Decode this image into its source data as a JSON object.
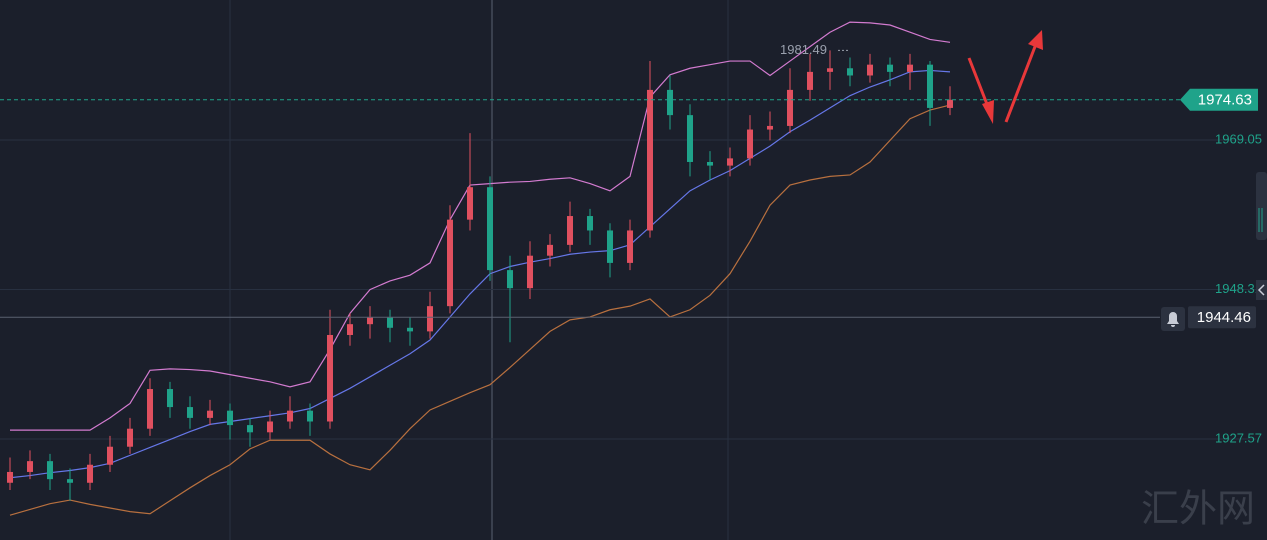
{
  "chart_data": {
    "type": "candlestick",
    "up_color": "#e0505f",
    "down_color": "#1fa38a",
    "open": [
      1921.5,
      1923.0,
      1924.5,
      1922.0,
      1921.5,
      1924.0,
      1926.5,
      1929.0,
      1934.5,
      1932.0,
      1930.5,
      1931.5,
      1929.5,
      1928.5,
      1930.0,
      1931.5,
      1930.0,
      1942.0,
      1943.5,
      1944.5,
      1943.0,
      1942.5,
      1946.0,
      1958.0,
      1962.5,
      1951.0,
      1948.5,
      1953.0,
      1954.5,
      1958.5,
      1956.5,
      1952.0,
      1956.5,
      1976.0,
      1972.5,
      1966.0,
      1965.5,
      1966.5,
      1970.5,
      1971.0,
      1976.0,
      1978.5,
      1979.0,
      1978.0,
      1979.5,
      1978.5,
      1979.5,
      1973.5
    ],
    "high": [
      1925.0,
      1926.0,
      1925.5,
      1923.5,
      1925.5,
      1928.0,
      1930.5,
      1936.0,
      1935.5,
      1933.5,
      1933.0,
      1932.5,
      1930.5,
      1931.5,
      1933.5,
      1932.5,
      1945.5,
      1945.0,
      1946.0,
      1945.5,
      1944.5,
      1948.0,
      1960.0,
      1970.0,
      1964.0,
      1953.0,
      1955.0,
      1956.0,
      1960.5,
      1959.5,
      1957.5,
      1958.0,
      1980.0,
      1978.0,
      1974.0,
      1967.5,
      1968.0,
      1972.5,
      1973.0,
      1979.0,
      1981.0,
      1981.49,
      1980.5,
      1981.0,
      1980.5,
      1981.0,
      1980.0,
      1976.5
    ],
    "low": [
      1920.5,
      1922.0,
      1920.5,
      1919.0,
      1920.5,
      1923.0,
      1925.5,
      1928.0,
      1930.5,
      1929.0,
      1929.5,
      1927.5,
      1926.5,
      1927.5,
      1929.0,
      1928.0,
      1929.0,
      1940.5,
      1941.5,
      1941.0,
      1940.5,
      1941.5,
      1945.0,
      1956.5,
      1949.5,
      1941.0,
      1947.0,
      1951.5,
      1953.5,
      1954.5,
      1950.0,
      1951.0,
      1955.5,
      1970.5,
      1964.0,
      1963.5,
      1964.0,
      1965.5,
      1969.0,
      1970.0,
      1974.5,
      1976.0,
      1976.5,
      1977.0,
      1976.5,
      1976.0,
      1971.0,
      1972.5
    ],
    "close": [
      1923.0,
      1924.5,
      1922.0,
      1921.5,
      1924.0,
      1926.5,
      1929.0,
      1934.5,
      1932.0,
      1930.5,
      1931.5,
      1929.5,
      1928.5,
      1930.0,
      1931.5,
      1930.0,
      1942.0,
      1943.5,
      1944.5,
      1943.0,
      1942.5,
      1946.0,
      1958.0,
      1962.5,
      1951.0,
      1948.5,
      1953.0,
      1954.5,
      1958.5,
      1956.5,
      1952.0,
      1956.5,
      1976.0,
      1972.5,
      1966.0,
      1965.5,
      1966.5,
      1970.5,
      1971.0,
      1976.0,
      1978.5,
      1979.0,
      1978.0,
      1979.5,
      1978.5,
      1979.5,
      1973.5,
      1974.63
    ],
    "series": [
      {
        "color": "#d37bd0",
        "values": [
          1928.8,
          1928.8,
          1928.8,
          1928.8,
          1928.8,
          1930.5,
          1932.5,
          1937.1,
          1937.3,
          1937.2,
          1937.0,
          1936.5,
          1936.0,
          1935.5,
          1934.8,
          1935.5,
          1940.0,
          1945.0,
          1948.3,
          1949.5,
          1950.3,
          1952.0,
          1958.0,
          1962.8,
          1963.0,
          1963.2,
          1963.3,
          1963.6,
          1963.8,
          1963.0,
          1962.0,
          1964.0,
          1975.0,
          1978.1,
          1979.0,
          1979.5,
          1980.0,
          1980.0,
          1978.0,
          1980.0,
          1982.0,
          1984.0,
          1985.4,
          1985.3,
          1985.0,
          1984.0,
          1983.0,
          1982.6
        ]
      },
      {
        "color": "#6677e8",
        "values": [
          1922.2,
          1922.5,
          1922.9,
          1923.2,
          1923.6,
          1924.2,
          1925.3,
          1926.4,
          1927.5,
          1928.6,
          1929.6,
          1930.0,
          1930.4,
          1930.8,
          1931.2,
          1931.8,
          1933.2,
          1934.6,
          1936.2,
          1937.8,
          1939.4,
          1941.3,
          1944.5,
          1947.7,
          1950.5,
          1951.5,
          1952.1,
          1952.6,
          1953.2,
          1953.5,
          1953.7,
          1954.5,
          1957.0,
          1959.5,
          1962.0,
          1963.5,
          1964.8,
          1966.5,
          1968.2,
          1970.2,
          1971.8,
          1973.5,
          1975.2,
          1976.4,
          1977.4,
          1978.5,
          1978.7,
          1978.5
        ]
      },
      {
        "color": "#b8703f",
        "values": [
          1917.0,
          1917.8,
          1918.6,
          1919.1,
          1918.5,
          1918.0,
          1917.5,
          1917.2,
          1919.0,
          1920.8,
          1922.5,
          1924.0,
          1926.2,
          1927.4,
          1927.4,
          1927.4,
          1925.5,
          1924.0,
          1923.3,
          1926.0,
          1929.0,
          1931.6,
          1932.8,
          1934.0,
          1935.1,
          1937.5,
          1940.0,
          1942.5,
          1944.1,
          1944.5,
          1945.5,
          1946.0,
          1947.0,
          1944.5,
          1945.5,
          1947.5,
          1950.5,
          1955.0,
          1960.0,
          1962.8,
          1963.5,
          1964.0,
          1964.2,
          1966.0,
          1969.0,
          1972.0,
          1973.2,
          1973.9
        ]
      }
    ],
    "ylim": [
      1913.56,
      1988.47
    ],
    "yticks": [
      1969.05,
      1948.31,
      1927.57
    ],
    "grid": true,
    "last_price": 1974.63,
    "crosshair_price": 1944.46,
    "max_price": 1981.49,
    "watermark": "汇外网"
  }
}
